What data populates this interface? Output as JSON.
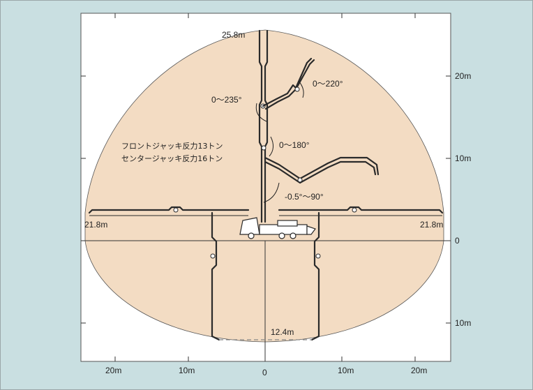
{
  "labels": {
    "top_height": "25.8m",
    "left_reach": "21.8m",
    "right_reach": "21.8m",
    "bottom_depth": "12.4m",
    "angle_tip": "0～220°",
    "angle_second": "0～235°",
    "angle_third": "0～180°",
    "angle_base": "-0.5°～90°",
    "jack_front": "フロントジャッキ反力13トン",
    "jack_center": "センタージャッキ反力16トン"
  },
  "axes": {
    "right_ticks": [
      "20m",
      "10m",
      "0",
      "10m"
    ],
    "bottom_ticks": [
      "20m",
      "10m",
      "0",
      "10m",
      "20m"
    ]
  },
  "colors": {
    "background": "#c9dfe1",
    "plot_area": "#ffffff",
    "reach_fill": "#f3dcc3",
    "line": "#2a2a2a"
  }
}
